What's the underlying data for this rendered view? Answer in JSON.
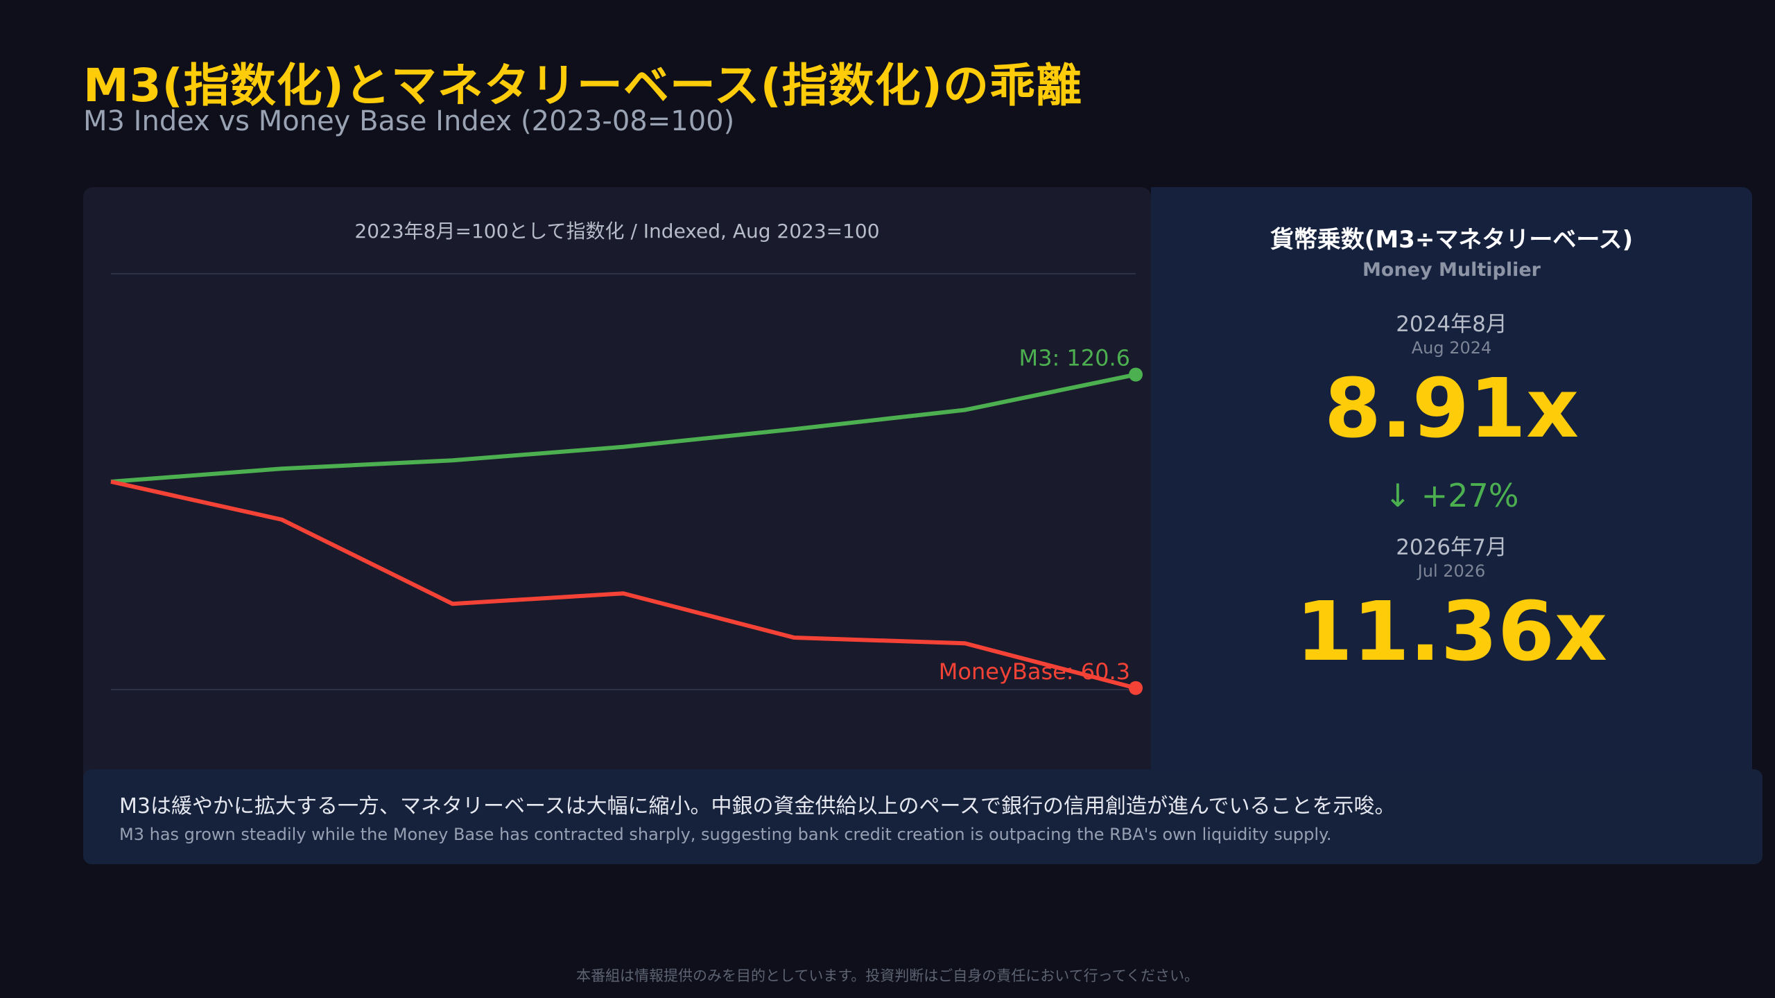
{
  "header": {
    "title": "M3(指数化)とマネタリーベース(指数化)の乖離",
    "subtitle": "M3 Index vs Money Base Index (2023-08=100)"
  },
  "chart_data": {
    "type": "line",
    "title": "2023年8月=100として指数化 / Indexed, Aug 2023=100",
    "x": [
      0,
      1,
      2,
      3,
      4,
      5,
      6
    ],
    "ylim": [
      40,
      140
    ],
    "grid": true,
    "series": [
      {
        "name": "M3",
        "color": "#4caf50",
        "values": [
          100,
          102.5,
          104.1,
          106.7,
          110.1,
          113.8,
          120.6
        ],
        "end_label": "M3: 120.6"
      },
      {
        "name": "MoneyBase",
        "color": "#f44336",
        "values": [
          100,
          92.7,
          76.5,
          78.5,
          70.0,
          68.9,
          60.3
        ],
        "end_label": "MoneyBase: 60.3"
      }
    ]
  },
  "multiplier": {
    "title": "貨幣乗数(M3÷マネタリーベース)",
    "subtitle": "Money Multiplier",
    "from_date": "2024年8月",
    "from_date_en": "Aug 2024",
    "from_value": "8.91x",
    "change": "↓ +27%",
    "change_color": "#4caf50",
    "to_date": "2026年7月",
    "to_date_en": "Jul 2026",
    "to_value": "11.36x"
  },
  "note": {
    "jp": "M3は緩やかに拡大する一方、マネタリーベースは大幅に縮小。中銀の資金供給以上のペースで銀行の信用創造が進んでいることを示唆。",
    "en": "M3 has grown steadily while the Money Base has contracted sharply, suggesting bank credit creation is outpacing the RBA's own liquidity supply."
  },
  "disclaimer": "本番組は情報提供のみを目的としています。投資判断はご自身の責任において行ってください。",
  "colors": {
    "accent": "#ffcc0a",
    "m3": "#4caf50",
    "moneybase": "#f44336"
  }
}
